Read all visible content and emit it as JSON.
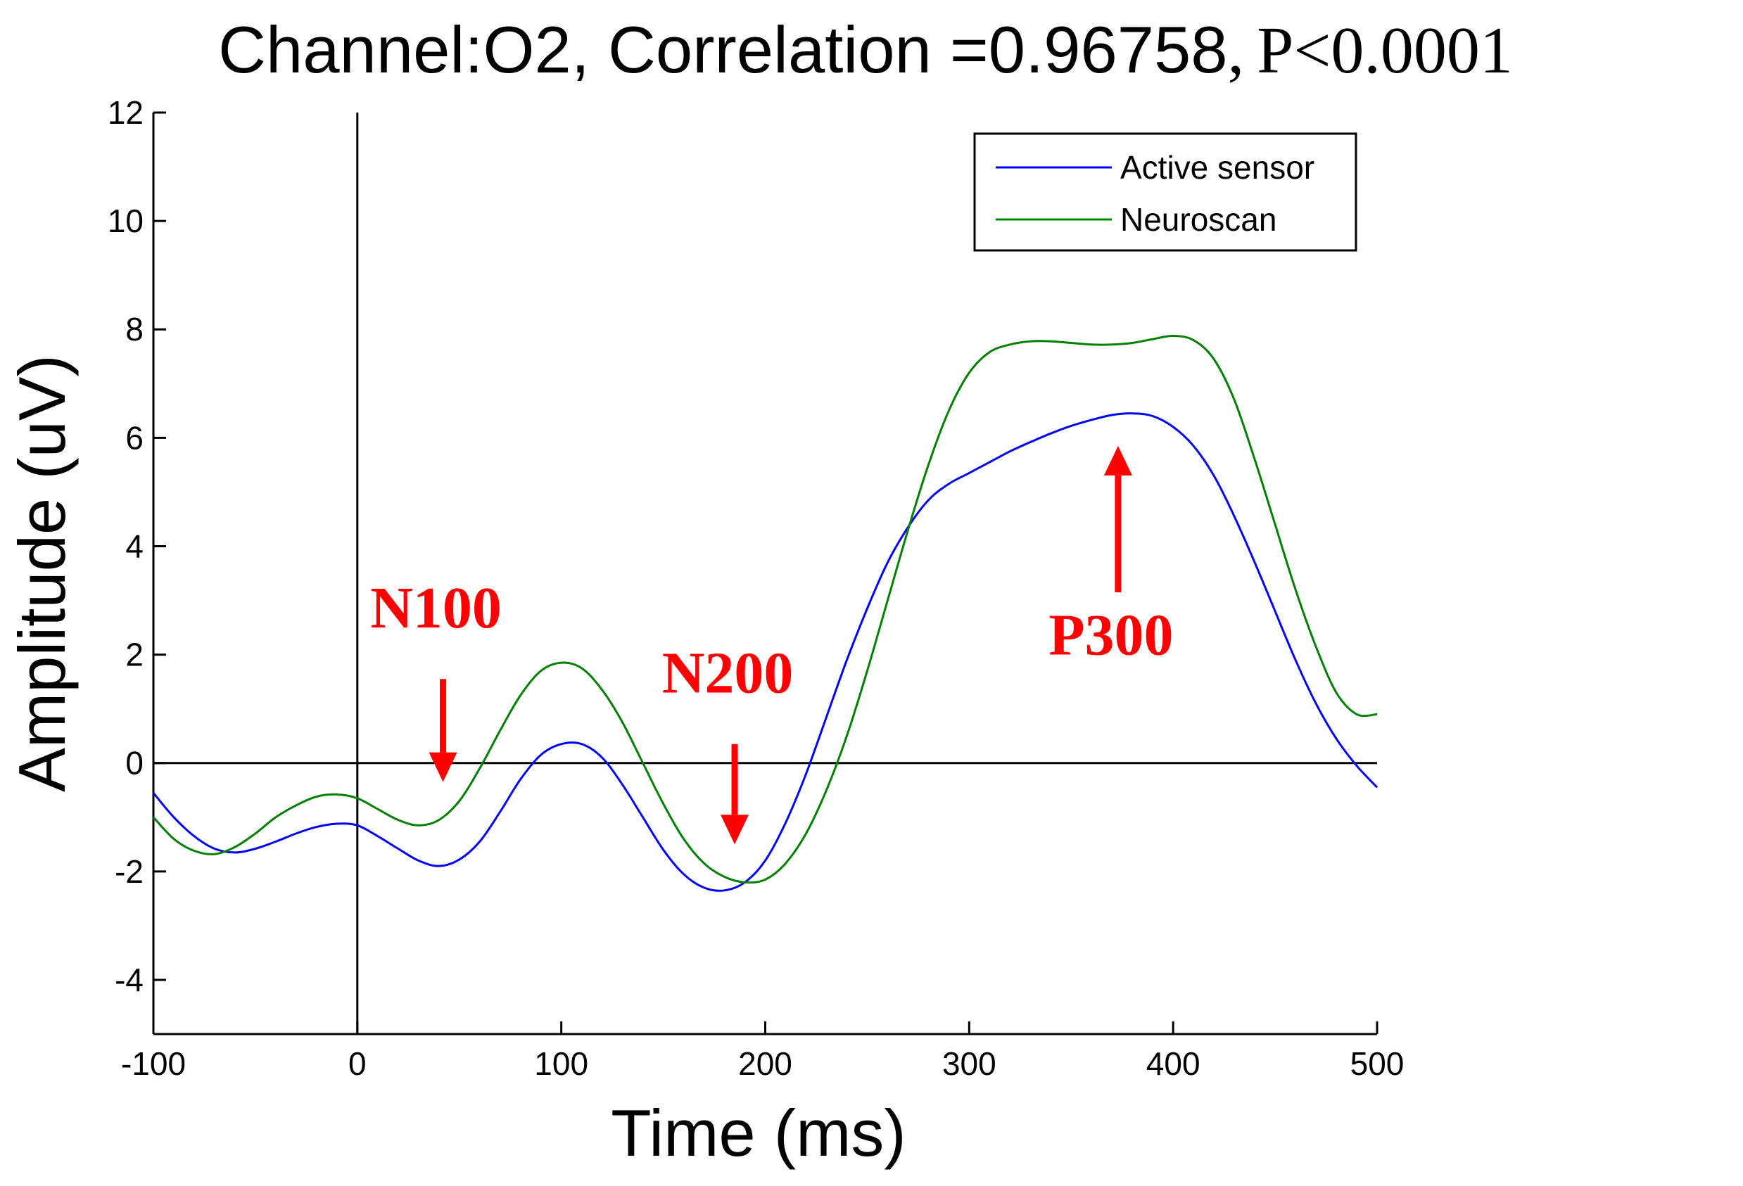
{
  "chart_data": {
    "type": "line",
    "title_main": "Channel:O2, Correlation =0.96758",
    "title_sep": ",",
    "title_p": "P<0.0001",
    "xlabel": "Time (ms)",
    "ylabel": "Amplitude (uV)",
    "xlim": [
      -100,
      500
    ],
    "ylim": [
      -5,
      12
    ],
    "xticks": [
      -100,
      0,
      100,
      200,
      300,
      400,
      500
    ],
    "yticks": [
      -4,
      -2,
      0,
      2,
      4,
      6,
      8,
      10,
      12
    ],
    "grid": false,
    "legend_position": "top-right",
    "reference_lines": {
      "x_zero": true,
      "y_zero": true
    },
    "series": [
      {
        "name": "Active sensor",
        "color": "#0000ff",
        "x": [
          -100,
          -90,
          -80,
          -70,
          -60,
          -50,
          -40,
          -30,
          -20,
          -10,
          0,
          10,
          20,
          30,
          40,
          50,
          60,
          70,
          80,
          90,
          100,
          110,
          120,
          130,
          140,
          150,
          160,
          170,
          180,
          190,
          200,
          210,
          220,
          230,
          240,
          250,
          260,
          270,
          280,
          290,
          300,
          310,
          320,
          330,
          340,
          350,
          360,
          370,
          380,
          390,
          400,
          410,
          420,
          430,
          440,
          450,
          460,
          470,
          480,
          490,
          500
        ],
        "y": [
          -0.55,
          -1.0,
          -1.35,
          -1.58,
          -1.65,
          -1.58,
          -1.45,
          -1.3,
          -1.18,
          -1.12,
          -1.15,
          -1.35,
          -1.58,
          -1.8,
          -1.9,
          -1.78,
          -1.45,
          -0.9,
          -0.3,
          0.15,
          0.35,
          0.35,
          0.1,
          -0.4,
          -1.0,
          -1.6,
          -2.05,
          -2.3,
          -2.35,
          -2.2,
          -1.8,
          -1.1,
          -0.2,
          0.85,
          1.9,
          2.85,
          3.7,
          4.35,
          4.85,
          5.15,
          5.35,
          5.55,
          5.75,
          5.92,
          6.08,
          6.22,
          6.33,
          6.42,
          6.45,
          6.4,
          6.2,
          5.85,
          5.3,
          4.55,
          3.7,
          2.8,
          1.9,
          1.1,
          0.45,
          -0.05,
          -0.45
        ]
      },
      {
        "name": "Neuroscan",
        "color": "#008000",
        "x": [
          -100,
          -90,
          -80,
          -70,
          -60,
          -50,
          -40,
          -30,
          -20,
          -10,
          0,
          10,
          20,
          30,
          40,
          50,
          60,
          70,
          80,
          90,
          100,
          110,
          120,
          130,
          140,
          150,
          160,
          170,
          180,
          190,
          200,
          210,
          220,
          230,
          240,
          250,
          260,
          270,
          280,
          290,
          300,
          310,
          320,
          330,
          340,
          350,
          360,
          370,
          380,
          390,
          400,
          410,
          420,
          430,
          440,
          450,
          460,
          470,
          480,
          490,
          500
        ],
        "y": [
          -1.0,
          -1.4,
          -1.62,
          -1.68,
          -1.55,
          -1.3,
          -1.0,
          -0.78,
          -0.62,
          -0.58,
          -0.65,
          -0.85,
          -1.05,
          -1.15,
          -1.05,
          -0.7,
          -0.1,
          0.6,
          1.25,
          1.7,
          1.85,
          1.75,
          1.35,
          0.75,
          0.0,
          -0.75,
          -1.4,
          -1.85,
          -2.1,
          -2.2,
          -2.15,
          -1.85,
          -1.3,
          -0.5,
          0.5,
          1.7,
          3.0,
          4.3,
          5.5,
          6.5,
          7.2,
          7.58,
          7.72,
          7.78,
          7.78,
          7.75,
          7.72,
          7.72,
          7.75,
          7.82,
          7.88,
          7.8,
          7.45,
          6.7,
          5.6,
          4.4,
          3.2,
          2.15,
          1.3,
          0.9,
          0.9
        ]
      }
    ],
    "annotations": [
      {
        "label": "N100",
        "color": "#ff0000",
        "arrow": "down",
        "x": 42,
        "text_y": 2.5,
        "arrow_from": 1.55,
        "arrow_to": -0.35
      },
      {
        "label": "N200",
        "color": "#ff0000",
        "arrow": "down",
        "x": 185,
        "text_y": 1.3,
        "arrow_from": 0.35,
        "arrow_to": -1.5
      },
      {
        "label": "P300",
        "color": "#ff0000",
        "arrow": "up",
        "x": 373,
        "text_y": 2.0,
        "arrow_from": 3.15,
        "arrow_to": 5.85
      }
    ]
  }
}
